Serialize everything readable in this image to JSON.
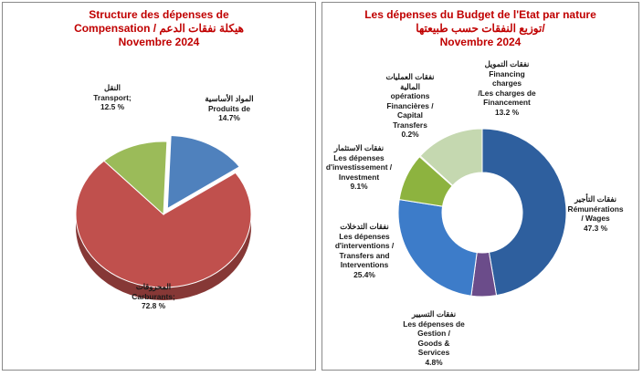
{
  "left_chart": {
    "title_lines": [
      "Structure des dépenses de",
      "Compensation / هيكلة نفقات الدعم",
      "Novembre 2024"
    ],
    "chart_data": {
      "type": "pie",
      "slices": [
        {
          "ar": "المواد الأساسية",
          "label": "Produits de",
          "value": 14.7,
          "value_text": "14.7%",
          "color": "#4f81bd",
          "exploded": true
        },
        {
          "ar": "المحروقات",
          "label": "Carburants;",
          "value": 72.8,
          "value_text": "72.8 %",
          "color": "#c0504d",
          "exploded": false
        },
        {
          "ar": "النقل",
          "label": "Transport;",
          "value": 12.5,
          "value_text": "12.5 %",
          "color": "#9bbb59",
          "exploded": false
        }
      ]
    }
  },
  "right_chart": {
    "title_lines": [
      "Les dépenses du Budget de l'Etat par nature",
      "توزيع النفقات حسب طبيعتها/",
      "Novembre 2024"
    ],
    "chart_data": {
      "type": "pie",
      "subtype": "doughnut",
      "slices": [
        {
          "lines": [
            "نفقات التأجير",
            "Rémunérations",
            "/ Wages",
            "47.3 %"
          ],
          "value": 47.3,
          "color": "#2e5f9e"
        },
        {
          "lines": [
            "نفقات التسيير",
            "Les dépenses de",
            "Gestion /",
            "Goods &",
            "Services",
            "4.8%"
          ],
          "value": 4.8,
          "color": "#6b4c8a"
        },
        {
          "lines": [
            "نفقات التدخلات",
            "Les dépenses",
            "d'interventions /",
            "Transfers and",
            "Interventions",
            "25.4%"
          ],
          "value": 25.4,
          "color": "#3d7cc9"
        },
        {
          "lines": [
            "نفقات الاستثمار",
            "Les dépenses",
            "d'investissement /",
            "Investment",
            "9.1%"
          ],
          "value": 9.1,
          "color": "#8db33f"
        },
        {
          "lines": [
            "نفقات العمليات",
            "المالية",
            "opérations",
            "Financières /",
            "Capital",
            "Transfers",
            "0.2%"
          ],
          "value": 0.2,
          "color": "#d9a441"
        },
        {
          "lines": [
            "نفقات التمويل",
            "Financing",
            "charges",
            "/Les charges de",
            "Financement",
            "13.2 %"
          ],
          "value": 13.2,
          "color": "#c5d8b0"
        }
      ]
    }
  }
}
